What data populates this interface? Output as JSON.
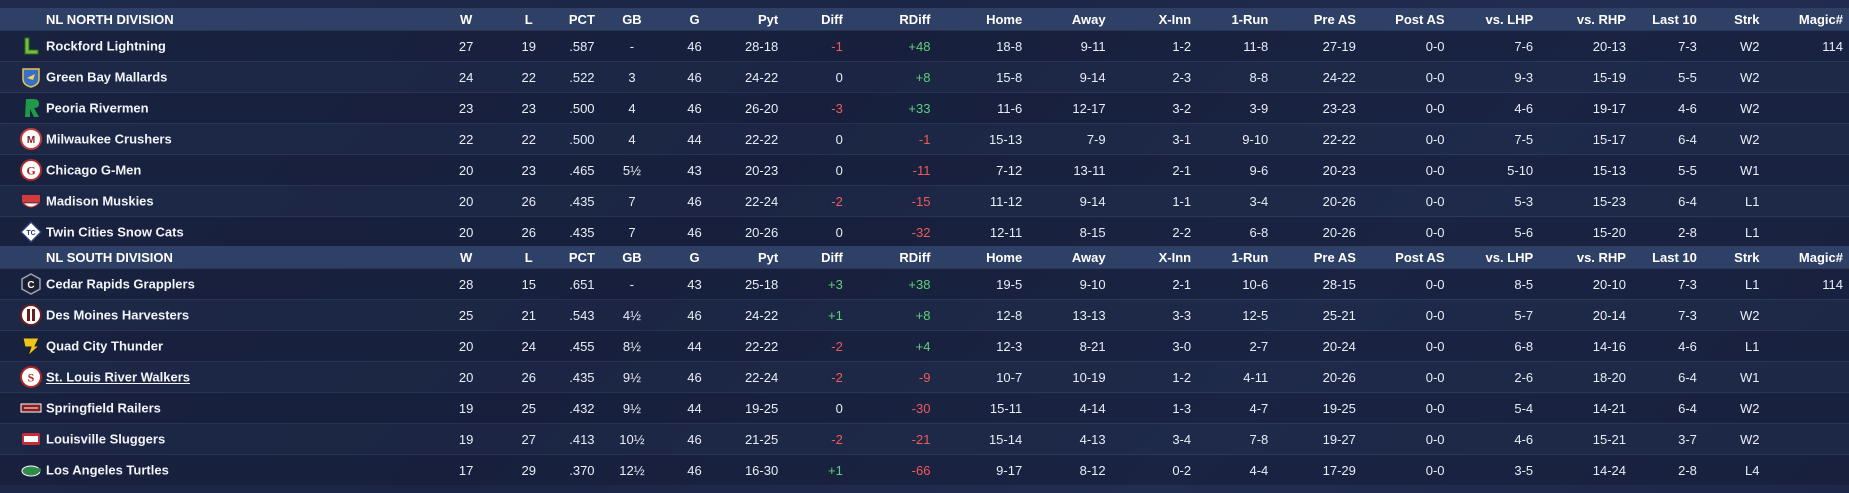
{
  "columns": [
    "W",
    "L",
    "PCT",
    "GB",
    "G",
    "Pyt",
    "Diff",
    "RDiff",
    "Home",
    "Away",
    "X-Inn",
    "1-Run",
    "Pre AS",
    "Post AS",
    "vs. LHP",
    "vs. RHP",
    "Last 10",
    "Strk",
    "Magic#"
  ],
  "divisions": [
    {
      "name": "NL NORTH DIVISION",
      "teams": [
        {
          "team": "Rockford Lightning",
          "logo": "rockford-lightning-logo",
          "W": "27",
          "L": "19",
          "PCT": ".587",
          "GB": "-",
          "G": "46",
          "Pyt": "28-18",
          "Diff": "-1",
          "RDiff": "+48",
          "Home": "18-8",
          "Away": "9-11",
          "XInn": "1-2",
          "OneRun": "11-8",
          "PreAS": "27-19",
          "PostAS": "0-0",
          "LHP": "7-6",
          "RHP": "20-13",
          "Last10": "7-3",
          "Strk": "W2",
          "Magic": "114"
        },
        {
          "team": "Green Bay  Mallards",
          "logo": "green-bay-mallards-logo",
          "W": "24",
          "L": "22",
          "PCT": ".522",
          "GB": "3",
          "G": "46",
          "Pyt": "24-22",
          "Diff": "0",
          "RDiff": "+8",
          "Home": "15-8",
          "Away": "9-14",
          "XInn": "2-3",
          "OneRun": "8-8",
          "PreAS": "24-22",
          "PostAS": "0-0",
          "LHP": "9-3",
          "RHP": "15-19",
          "Last10": "5-5",
          "Strk": "W2",
          "Magic": ""
        },
        {
          "team": "Peoria Rivermen",
          "logo": "peoria-rivermen-logo",
          "W": "23",
          "L": "23",
          "PCT": ".500",
          "GB": "4",
          "G": "46",
          "Pyt": "26-20",
          "Diff": "-3",
          "RDiff": "+33",
          "Home": "11-6",
          "Away": "12-17",
          "XInn": "3-2",
          "OneRun": "3-9",
          "PreAS": "23-23",
          "PostAS": "0-0",
          "LHP": "4-6",
          "RHP": "19-17",
          "Last10": "4-6",
          "Strk": "W2",
          "Magic": ""
        },
        {
          "team": "Milwaukee Crushers",
          "logo": "milwaukee-crushers-logo",
          "W": "22",
          "L": "22",
          "PCT": ".500",
          "GB": "4",
          "G": "44",
          "Pyt": "22-22",
          "Diff": "0",
          "RDiff": "-1",
          "Home": "15-13",
          "Away": "7-9",
          "XInn": "3-1",
          "OneRun": "9-10",
          "PreAS": "22-22",
          "PostAS": "0-0",
          "LHP": "7-5",
          "RHP": "15-17",
          "Last10": "6-4",
          "Strk": "W2",
          "Magic": ""
        },
        {
          "team": "Chicago G-Men",
          "logo": "chicago-g-men-logo",
          "W": "20",
          "L": "23",
          "PCT": ".465",
          "GB": "5½",
          "G": "43",
          "Pyt": "20-23",
          "Diff": "0",
          "RDiff": "-11",
          "Home": "7-12",
          "Away": "13-11",
          "XInn": "2-1",
          "OneRun": "9-6",
          "PreAS": "20-23",
          "PostAS": "0-0",
          "LHP": "5-10",
          "RHP": "15-13",
          "Last10": "5-5",
          "Strk": "W1",
          "Magic": ""
        },
        {
          "team": "Madison Muskies",
          "logo": "madison-muskies-logo",
          "W": "20",
          "L": "26",
          "PCT": ".435",
          "GB": "7",
          "G": "46",
          "Pyt": "22-24",
          "Diff": "-2",
          "RDiff": "-15",
          "Home": "11-12",
          "Away": "9-14",
          "XInn": "1-1",
          "OneRun": "3-4",
          "PreAS": "20-26",
          "PostAS": "0-0",
          "LHP": "5-3",
          "RHP": "15-23",
          "Last10": "6-4",
          "Strk": "L1",
          "Magic": ""
        },
        {
          "team": "Twin Cities Snow Cats",
          "logo": "twin-cities-snow-cats-logo",
          "W": "20",
          "L": "26",
          "PCT": ".435",
          "GB": "7",
          "G": "46",
          "Pyt": "20-26",
          "Diff": "0",
          "RDiff": "-32",
          "Home": "12-11",
          "Away": "8-15",
          "XInn": "2-2",
          "OneRun": "6-8",
          "PreAS": "20-26",
          "PostAS": "0-0",
          "LHP": "5-6",
          "RHP": "15-20",
          "Last10": "2-8",
          "Strk": "L1",
          "Magic": ""
        }
      ]
    },
    {
      "name": "NL SOUTH DIVISION",
      "teams": [
        {
          "team": "Cedar Rapids Grapplers",
          "logo": "cedar-rapids-grapplers-logo",
          "W": "28",
          "L": "15",
          "PCT": ".651",
          "GB": "-",
          "G": "43",
          "Pyt": "25-18",
          "Diff": "+3",
          "RDiff": "+38",
          "Home": "19-5",
          "Away": "9-10",
          "XInn": "2-1",
          "OneRun": "10-6",
          "PreAS": "28-15",
          "PostAS": "0-0",
          "LHP": "8-5",
          "RHP": "20-10",
          "Last10": "7-3",
          "Strk": "L1",
          "Magic": "114"
        },
        {
          "team": "Des Moines Harvesters",
          "logo": "des-moines-harvesters-logo",
          "W": "25",
          "L": "21",
          "PCT": ".543",
          "GB": "4½",
          "G": "46",
          "Pyt": "24-22",
          "Diff": "+1",
          "RDiff": "+8",
          "Home": "12-8",
          "Away": "13-13",
          "XInn": "3-3",
          "OneRun": "12-5",
          "PreAS": "25-21",
          "PostAS": "0-0",
          "LHP": "5-7",
          "RHP": "20-14",
          "Last10": "7-3",
          "Strk": "W2",
          "Magic": ""
        },
        {
          "team": "Quad City Thunder",
          "logo": "quad-city-thunder-logo",
          "W": "20",
          "L": "24",
          "PCT": ".455",
          "GB": "8½",
          "G": "44",
          "Pyt": "22-22",
          "Diff": "-2",
          "RDiff": "+4",
          "Home": "12-3",
          "Away": "8-21",
          "XInn": "3-0",
          "OneRun": "2-7",
          "PreAS": "20-24",
          "PostAS": "0-0",
          "LHP": "6-8",
          "RHP": "14-16",
          "Last10": "4-6",
          "Strk": "L1",
          "Magic": ""
        },
        {
          "team": "St. Louis River Walkers",
          "logo": "st-louis-river-walkers-logo",
          "link": true,
          "W": "20",
          "L": "26",
          "PCT": ".435",
          "GB": "9½",
          "G": "46",
          "Pyt": "22-24",
          "Diff": "-2",
          "RDiff": "-9",
          "Home": "10-7",
          "Away": "10-19",
          "XInn": "1-2",
          "OneRun": "4-11",
          "PreAS": "20-26",
          "PostAS": "0-0",
          "LHP": "2-6",
          "RHP": "18-20",
          "Last10": "6-4",
          "Strk": "W1",
          "Magic": ""
        },
        {
          "team": "Springfield Railers",
          "logo": "springfield-railers-logo",
          "W": "19",
          "L": "25",
          "PCT": ".432",
          "GB": "9½",
          "G": "44",
          "Pyt": "19-25",
          "Diff": "0",
          "RDiff": "-30",
          "Home": "15-11",
          "Away": "4-14",
          "XInn": "1-3",
          "OneRun": "4-7",
          "PreAS": "19-25",
          "PostAS": "0-0",
          "LHP": "5-4",
          "RHP": "14-21",
          "Last10": "6-4",
          "Strk": "W2",
          "Magic": ""
        },
        {
          "team": "Louisville Sluggers",
          "logo": "louisville-sluggers-logo",
          "W": "19",
          "L": "27",
          "PCT": ".413",
          "GB": "10½",
          "G": "46",
          "Pyt": "21-25",
          "Diff": "-2",
          "RDiff": "-21",
          "Home": "15-14",
          "Away": "4-13",
          "XInn": "3-4",
          "OneRun": "7-8",
          "PreAS": "19-27",
          "PostAS": "0-0",
          "LHP": "4-6",
          "RHP": "15-21",
          "Last10": "3-7",
          "Strk": "W2",
          "Magic": ""
        },
        {
          "team": "Los Angeles Turtles",
          "logo": "los-angeles-turtles-logo",
          "W": "17",
          "L": "29",
          "PCT": ".370",
          "GB": "12½",
          "G": "46",
          "Pyt": "16-30",
          "Diff": "+1",
          "RDiff": "-66",
          "Home": "9-17",
          "Away": "8-12",
          "XInn": "0-2",
          "OneRun": "4-4",
          "PreAS": "17-29",
          "PostAS": "0-0",
          "LHP": "3-5",
          "RHP": "14-24",
          "Last10": "2-8",
          "Strk": "L4",
          "Magic": ""
        }
      ]
    }
  ],
  "colors": {
    "positive": "#5ed17a",
    "negative": "#f05a5a",
    "header": "#2f4066"
  }
}
